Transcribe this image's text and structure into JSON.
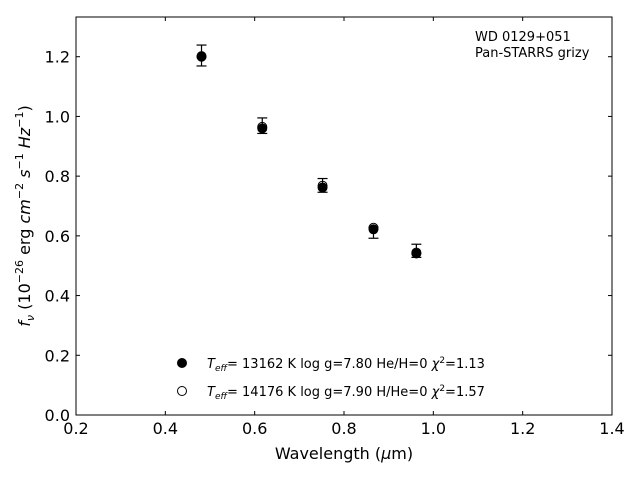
{
  "chart_data": {
    "type": "scatter",
    "title": "",
    "xlabel": "Wavelength (μm)",
    "ylabel": "f_ν (10^-26 erg cm^-2 s^-1 Hz^-1)",
    "xlim": [
      0.2,
      1.4
    ],
    "ylim": [
      0.0,
      1.333
    ],
    "xticks": [
      "0.2",
      "0.4",
      "0.6",
      "0.8",
      "1.0",
      "1.2",
      "1.4"
    ],
    "yticks": [
      "0.0",
      "0.2",
      "0.4",
      "0.6",
      "0.8",
      "1.0",
      "1.2"
    ],
    "annotation": [
      "WD 0129+051",
      "Pan-STARRS grizy"
    ],
    "x": [
      0.481,
      0.617,
      0.752,
      0.866,
      0.962
    ],
    "observed": {
      "y": [
        1.204,
        0.969,
        0.769,
        0.61,
        0.55
      ],
      "err": [
        0.035,
        0.026,
        0.023,
        0.018,
        0.022
      ]
    },
    "series": [
      {
        "name": "He/H=0",
        "marker": "filled",
        "teff": "13162 K",
        "logg": "log g=7.80",
        "comp": "He/H=0",
        "chi2": "=1.13",
        "values": [
          1.2,
          0.96,
          0.762,
          0.622,
          0.541
        ]
      },
      {
        "name": "H/He=0",
        "marker": "open",
        "teff": "14176 K",
        "logg": "log g=7.90",
        "comp": "H/He=0",
        "chi2": "=1.57",
        "values": [
          1.202,
          0.965,
          0.768,
          0.627,
          0.544
        ]
      }
    ]
  }
}
